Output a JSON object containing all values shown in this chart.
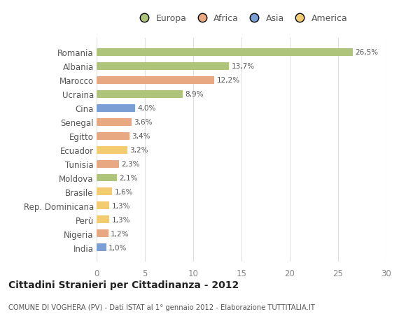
{
  "categories": [
    "India",
    "Nigeria",
    "Perù",
    "Rep. Dominicana",
    "Brasile",
    "Moldova",
    "Tunisia",
    "Ecuador",
    "Egitto",
    "Senegal",
    "Cina",
    "Ucraina",
    "Marocco",
    "Albania",
    "Romania"
  ],
  "values": [
    1.0,
    1.2,
    1.3,
    1.3,
    1.6,
    2.1,
    2.3,
    3.2,
    3.4,
    3.6,
    4.0,
    8.9,
    12.2,
    13.7,
    26.5
  ],
  "labels": [
    "1,0%",
    "1,2%",
    "1,3%",
    "1,3%",
    "1,6%",
    "2,1%",
    "2,3%",
    "3,2%",
    "3,4%",
    "3,6%",
    "4,0%",
    "8,9%",
    "12,2%",
    "13,7%",
    "26,5%"
  ],
  "colors": [
    "#7b9fd4",
    "#e8a882",
    "#f2cc6e",
    "#f2cc6e",
    "#f2cc6e",
    "#adc47a",
    "#e8a882",
    "#f2cc6e",
    "#e8a882",
    "#e8a882",
    "#7b9fd4",
    "#adc47a",
    "#e8a882",
    "#adc47a",
    "#adc47a"
  ],
  "legend_labels": [
    "Europa",
    "Africa",
    "Asia",
    "America"
  ],
  "legend_colors": [
    "#adc47a",
    "#e8a882",
    "#7b9fd4",
    "#f2cc6e"
  ],
  "title": "Cittadini Stranieri per Cittadinanza - 2012",
  "subtitle": "COMUNE DI VOGHERA (PV) - Dati ISTAT al 1° gennaio 2012 - Elaborazione TUTTITALIA.IT",
  "xlim": [
    0,
    30
  ],
  "xticks": [
    0,
    5,
    10,
    15,
    20,
    25,
    30
  ],
  "bg_color": "#ffffff",
  "grid_color": "#e0e0e0",
  "bar_height": 0.55
}
